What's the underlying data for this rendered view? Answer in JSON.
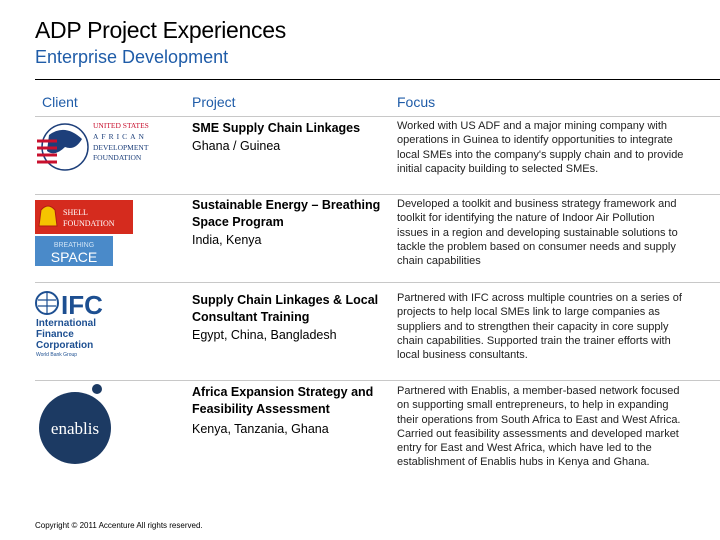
{
  "header": {
    "title": "ADP Project Experiences",
    "subtitle": "Enterprise Development"
  },
  "columns": [
    "Client",
    "Project",
    "Focus"
  ],
  "rows": [
    {
      "logo": "united-states-african-development-foundation-logo",
      "logo_text": [
        "UNITED STATES",
        "AFRICAN",
        "DEVELOPMENT",
        "FOUNDATION"
      ],
      "project": "SME Supply Chain Linkages",
      "location": "Ghana / Guinea",
      "focus": "Worked with US ADF and a major mining company with operations in Guinea to identify opportunities to integrate local SMEs into the company's supply chain and to provide initial capacity building to selected SMEs."
    },
    {
      "logo": "shell-foundation-breathing-space-logo",
      "logo_text": [
        "SHELL",
        "FOUNDATION",
        "BREATHING",
        "SPACE"
      ],
      "project": "Sustainable Energy – Breathing Space Program",
      "location": "India, Kenya",
      "focus": "Developed a toolkit and business strategy framework and toolkit for identifying the nature of Indoor Air Pollution issues in a region and developing sustainable solutions to tackle the problem based on consumer needs and supply chain capabilities"
    },
    {
      "logo": "ifc-logo",
      "logo_text": [
        "IFC",
        "International",
        "Finance",
        "Corporation",
        "World Bank Group"
      ],
      "project": "Supply Chain Linkages & Local Consultant Training",
      "location": "Egypt, China, Bangladesh",
      "focus": "Partnered with IFC across multiple countries on a series of projects to help local SMEs link to large companies as suppliers and to strengthen their capacity in core supply chain capabilities. Supported train the trainer efforts with local business consultants."
    },
    {
      "logo": "enablis-logo",
      "logo_text": [
        "enablis"
      ],
      "project": "Africa Expansion Strategy and Feasibility Assessment",
      "location": "Kenya, Tanzania, Ghana",
      "focus": "Partnered with Enablis, a member-based network focused on supporting small entrepreneurs, to help in expanding their operations from South Africa to East and West Africa. Carried out feasibility assessments and developed market entry for East and West Africa, which have led to the establishment of Enablis hubs in Kenya and Ghana."
    }
  ],
  "footer": "Copyright © 2011 Accenture All rights reserved.",
  "colors": {
    "accent": "#1f5ca8",
    "shell_red": "#d52b1e",
    "shell_yellow": "#f5c400",
    "ifc_blue": "#1d4f91",
    "enablis_navy": "#1c3a63"
  }
}
